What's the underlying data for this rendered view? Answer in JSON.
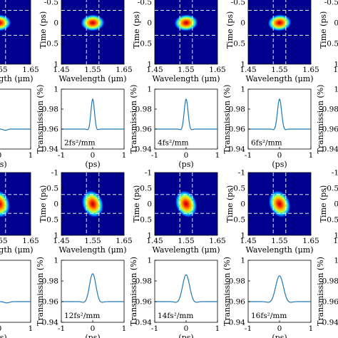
{
  "figure": {
    "columns_visible": 5,
    "rows_visible": 4,
    "note_visible_cropping": "left and right columns cut off"
  },
  "colors": {
    "line": "#1f77b4",
    "map_background": "#00008f",
    "crosshair": "#ffffff"
  },
  "chart_data": [
    {
      "type": "heatmap",
      "row": "spectrogram-top",
      "colormap": "jet",
      "xlabel": "Wavelength (μm)",
      "ylabel": "Time (ps)",
      "xlim": [
        1.45,
        1.65
      ],
      "ylim": [
        -1,
        1
      ],
      "y_reversed": true,
      "xticks": [
        "1.45",
        "1.55",
        "1.65"
      ],
      "yticks": [
        "-1",
        "-0.5",
        "0",
        "0.5",
        "1"
      ],
      "crosshair_x": [
        1.53,
        1.57
      ],
      "crosshair_y": [
        -0.3,
        0.3
      ],
      "panels": [
        {
          "center_wavelength": 1.55,
          "center_time": 0.0,
          "tilt": 0.0
        },
        {
          "center_wavelength": 1.55,
          "center_time": 0.0,
          "tilt": 0.05
        },
        {
          "center_wavelength": 1.55,
          "center_time": 0.0,
          "tilt": 0.1
        },
        {
          "center_wavelength": 1.55,
          "center_time": 0.0,
          "tilt": 0.15
        },
        {
          "center_wavelength": 1.55,
          "center_time": 0.0,
          "tilt": 0.2
        }
      ]
    },
    {
      "type": "line",
      "row": "transmission-top",
      "xlabel": "(ps)",
      "ylabel": "Transmission (%)",
      "xlim": [
        -1,
        1
      ],
      "ylim": [
        0.94,
        1.0
      ],
      "xticks": [
        "-1",
        "0",
        "1"
      ],
      "yticks": [
        "0.94",
        "0.96",
        "0.98",
        "1"
      ],
      "series": [
        {
          "annotation": "",
          "baseline": 0.96,
          "peak": 0.96,
          "width": 0.08
        },
        {
          "annotation": "2fs²/mm",
          "baseline": 0.96,
          "peak": 0.99,
          "width": 0.055
        },
        {
          "annotation": "4fs²/mm",
          "baseline": 0.96,
          "peak": 0.99,
          "width": 0.06
        },
        {
          "annotation": "6fs²/mm",
          "baseline": 0.96,
          "peak": 0.99,
          "width": 0.065
        },
        {
          "annotation": "",
          "baseline": 0.96,
          "peak": 0.96,
          "width": 0.07
        }
      ]
    },
    {
      "type": "heatmap",
      "row": "spectrogram-bottom",
      "colormap": "jet",
      "xlabel": "Wavelength (μm)",
      "ylabel": "Time (ps)",
      "xlim": [
        1.45,
        1.65
      ],
      "ylim": [
        -1,
        1
      ],
      "y_reversed": true,
      "xticks": [
        "1.45",
        "1.55",
        "1.65"
      ],
      "yticks": [
        "-1",
        "-0.5",
        "0",
        "0.5",
        "1"
      ],
      "crosshair_x": [
        1.53,
        1.57
      ],
      "crosshair_y": [
        -0.3,
        0.3
      ],
      "panels": [
        {
          "center_wavelength": 1.55,
          "center_time": 0.0,
          "tilt": 0.6
        },
        {
          "center_wavelength": 1.55,
          "center_time": 0.0,
          "tilt": 0.8
        },
        {
          "center_wavelength": 1.55,
          "center_time": 0.0,
          "tilt": 0.9
        },
        {
          "center_wavelength": 1.55,
          "center_time": 0.0,
          "tilt": 1.0
        },
        {
          "center_wavelength": 1.55,
          "center_time": 0.0,
          "tilt": 1.1
        }
      ]
    },
    {
      "type": "line",
      "row": "transmission-bottom",
      "xlabel": "(ps)",
      "ylabel": "Transmission (%)",
      "xlim": [
        -1,
        1
      ],
      "ylim": [
        0.94,
        1.0
      ],
      "xticks": [
        "-1",
        "0",
        "1"
      ],
      "yticks": [
        "0.94",
        "0.96",
        "0.98",
        "1"
      ],
      "series": [
        {
          "annotation": "",
          "baseline": 0.96,
          "peak": 0.96,
          "width": 0.1
        },
        {
          "annotation": "12fs²/mm",
          "baseline": 0.96,
          "peak": 0.987,
          "width": 0.1
        },
        {
          "annotation": "14fs²/mm",
          "baseline": 0.96,
          "peak": 0.986,
          "width": 0.11
        },
        {
          "annotation": "16fs²/mm",
          "baseline": 0.96,
          "peak": 0.985,
          "width": 0.12
        },
        {
          "annotation": "",
          "baseline": 0.96,
          "peak": 0.96,
          "width": 0.12
        }
      ]
    }
  ]
}
